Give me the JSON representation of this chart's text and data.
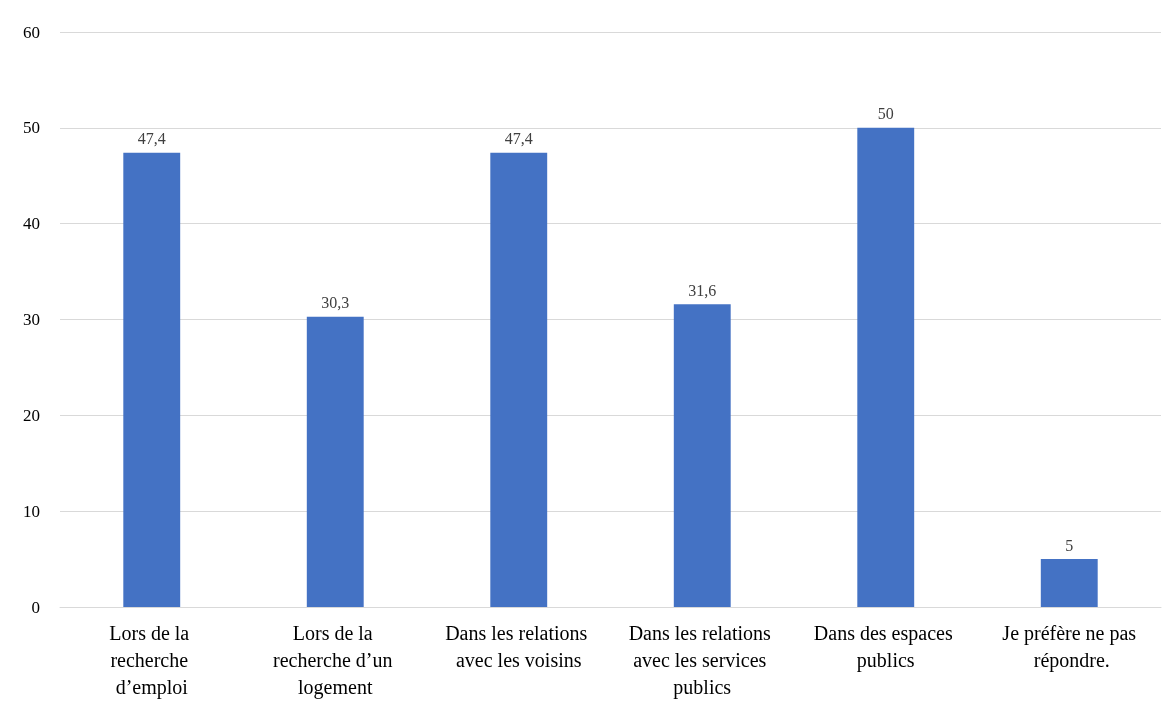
{
  "chart_data": {
    "type": "bar",
    "categories": [
      "Lors de la recherche d’emploi",
      "Lors de la recherche d’un logement",
      "Dans les relations avec les voisins",
      "Dans les relations avec les services publics",
      "Dans des espaces publics",
      "Je préfère ne pas répondre."
    ],
    "values": [
      47.4,
      30.3,
      47.4,
      31.6,
      50,
      5
    ],
    "value_labels": [
      "47,4",
      "30,3",
      "47,4",
      "31,6",
      "50",
      "5"
    ],
    "color": "#4472c4",
    "ylim": [
      0,
      60
    ],
    "yticks": [
      0,
      10,
      20,
      30,
      40,
      50,
      60
    ],
    "grid": "y"
  }
}
